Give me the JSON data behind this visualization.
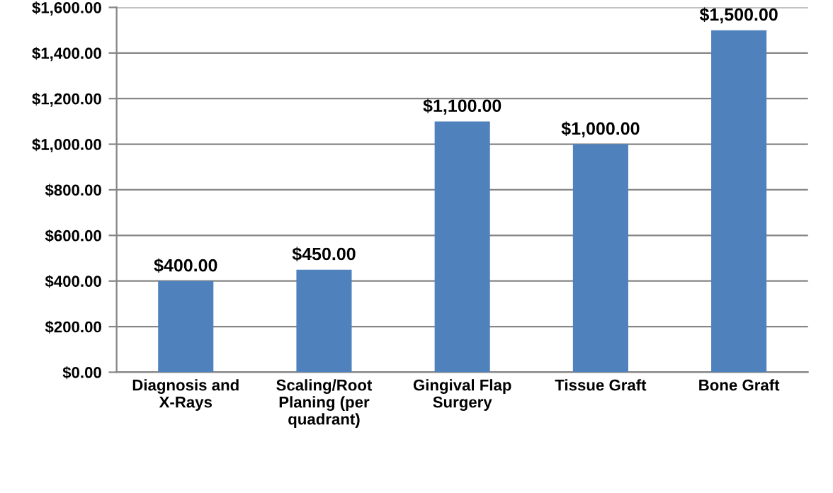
{
  "chart_data": {
    "type": "bar",
    "categories": [
      "Diagnosis and\nX-Rays",
      "Scaling/Root\nPlaning (per\nquadrant)",
      "Gingival Flap\nSurgery",
      "Tissue Graft",
      "Bone Graft"
    ],
    "values": [
      400,
      450,
      1100,
      1000,
      1500
    ],
    "color": "#4f81bd",
    "value_labels": [
      "$400.00",
      "$450.00",
      "$1,100.00",
      "$1,000.00",
      "$1,500.00"
    ],
    "ylim": [
      0,
      1600
    ],
    "yticks": [
      {
        "value": 0,
        "label": "$0.00"
      },
      {
        "value": 200,
        "label": "$200.00"
      },
      {
        "value": 400,
        "label": "$400.00"
      },
      {
        "value": 600,
        "label": "$600.00"
      },
      {
        "value": 800,
        "label": "$800.00"
      },
      {
        "value": 1000,
        "label": "$1,000.00"
      },
      {
        "value": 1200,
        "label": "$1,200.00"
      },
      {
        "value": 1400,
        "label": "$1,400.00"
      },
      {
        "value": 1600,
        "label": "$1,600.00"
      }
    ],
    "grid": "y",
    "legend": false
  }
}
